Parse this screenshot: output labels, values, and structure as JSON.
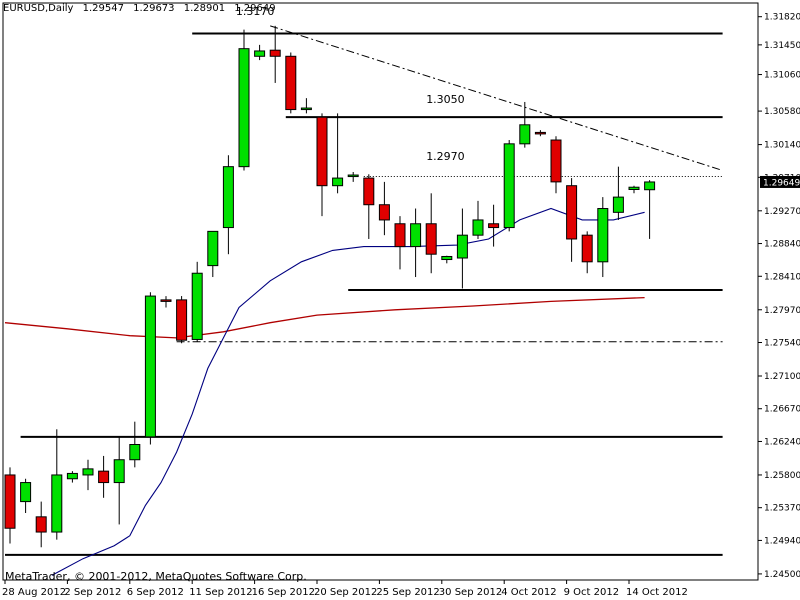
{
  "header": {
    "symbol": "EURUSD,Daily",
    "open": "1.29547",
    "high": "1.29673",
    "low": "1.28901",
    "close": "1.29649"
  },
  "footer": {
    "copyright": "MetaTrader, © 2001-2012, MetaQuotes Software Corp."
  },
  "colors": {
    "bull": "#00e000",
    "bear": "#e00000",
    "ma_fast": "#000080",
    "ma_slow": "#b00000",
    "current_price_bg": "#000000",
    "current_price_fg": "#ffffff"
  },
  "chart_data": {
    "type": "candlestick",
    "symbol": "EURUSD",
    "timeframe": "Daily",
    "ylim": [
      1.2442,
      1.32
    ],
    "price_ticks": [
      "1.31820",
      "1.31450",
      "1.31060",
      "1.30580",
      "1.30140",
      "1.29710",
      "1.29270",
      "1.28840",
      "1.28410",
      "1.27970",
      "1.27540",
      "1.27100",
      "1.26670",
      "1.26240",
      "1.25800",
      "1.25370",
      "1.24940",
      "1.24500"
    ],
    "current_price": "1.29649",
    "date_labels": [
      {
        "label": "28 Aug 2012",
        "index": 0
      },
      {
        "label": "2 Sep 2012",
        "index": 4
      },
      {
        "label": "6 Sep 2012",
        "index": 8
      },
      {
        "label": "11 Sep 2012",
        "index": 12
      },
      {
        "label": "16 Sep 2012",
        "index": 16
      },
      {
        "label": "20 Sep 2012",
        "index": 20
      },
      {
        "label": "25 Sep 2012",
        "index": 24
      },
      {
        "label": "30 Sep 2012",
        "index": 28
      },
      {
        "label": "4 Oct 2012",
        "index": 32
      },
      {
        "label": "9 Oct 2012",
        "index": 36
      },
      {
        "label": "14 Oct 2012",
        "index": 40
      }
    ],
    "candles": [
      {
        "o": 1.258,
        "h": 1.259,
        "l": 1.249,
        "c": 1.251
      },
      {
        "o": 1.2545,
        "h": 1.2575,
        "l": 1.253,
        "c": 1.257
      },
      {
        "o": 1.2525,
        "h": 1.2545,
        "l": 1.2485,
        "c": 1.2505
      },
      {
        "o": 1.2505,
        "h": 1.264,
        "l": 1.2495,
        "c": 1.258
      },
      {
        "o": 1.2575,
        "h": 1.2585,
        "l": 1.257,
        "c": 1.2582
      },
      {
        "o": 1.258,
        "h": 1.26,
        "l": 1.256,
        "c": 1.2588
      },
      {
        "o": 1.2585,
        "h": 1.2605,
        "l": 1.255,
        "c": 1.257
      },
      {
        "o": 1.257,
        "h": 1.263,
        "l": 1.2515,
        "c": 1.26
      },
      {
        "o": 1.26,
        "h": 1.265,
        "l": 1.259,
        "c": 1.262
      },
      {
        "o": 1.263,
        "h": 1.282,
        "l": 1.262,
        "c": 1.2815
      },
      {
        "o": 1.281,
        "h": 1.2815,
        "l": 1.28,
        "c": 1.2808
      },
      {
        "o": 1.281,
        "h": 1.2815,
        "l": 1.2753,
        "c": 1.2757
      },
      {
        "o": 1.2758,
        "h": 1.286,
        "l": 1.2755,
        "c": 1.2845
      },
      {
        "o": 1.2855,
        "h": 1.29,
        "l": 1.284,
        "c": 1.29
      },
      {
        "o": 1.2905,
        "h": 1.3,
        "l": 1.287,
        "c": 1.2985
      },
      {
        "o": 1.2985,
        "h": 1.3165,
        "l": 1.298,
        "c": 1.314
      },
      {
        "o": 1.313,
        "h": 1.3145,
        "l": 1.3125,
        "c": 1.3137
      },
      {
        "o": 1.3138,
        "h": 1.317,
        "l": 1.3095,
        "c": 1.313
      },
      {
        "o": 1.313,
        "h": 1.3135,
        "l": 1.3055,
        "c": 1.306
      },
      {
        "o": 1.306,
        "h": 1.3075,
        "l": 1.3055,
        "c": 1.3062
      },
      {
        "o": 1.305,
        "h": 1.3055,
        "l": 1.292,
        "c": 1.296
      },
      {
        "o": 1.296,
        "h": 1.3055,
        "l": 1.295,
        "c": 1.297
      },
      {
        "o": 1.2972,
        "h": 1.2978,
        "l": 1.2965,
        "c": 1.2974
      },
      {
        "o": 1.297,
        "h": 1.2975,
        "l": 1.289,
        "c": 1.2935
      },
      {
        "o": 1.2935,
        "h": 1.2965,
        "l": 1.2895,
        "c": 1.2915
      },
      {
        "o": 1.291,
        "h": 1.292,
        "l": 1.285,
        "c": 1.288
      },
      {
        "o": 1.288,
        "h": 1.293,
        "l": 1.284,
        "c": 1.291
      },
      {
        "o": 1.291,
        "h": 1.295,
        "l": 1.2845,
        "c": 1.287
      },
      {
        "o": 1.2863,
        "h": 1.2868,
        "l": 1.2858,
        "c": 1.2867
      },
      {
        "o": 1.2865,
        "h": 1.293,
        "l": 1.2825,
        "c": 1.2895
      },
      {
        "o": 1.2895,
        "h": 1.294,
        "l": 1.289,
        "c": 1.2915
      },
      {
        "o": 1.291,
        "h": 1.2935,
        "l": 1.288,
        "c": 1.2905
      },
      {
        "o": 1.2905,
        "h": 1.302,
        "l": 1.29,
        "c": 1.3015
      },
      {
        "o": 1.3015,
        "h": 1.307,
        "l": 1.301,
        "c": 1.304
      },
      {
        "o": 1.303,
        "h": 1.3033,
        "l": 1.3025,
        "c": 1.3028
      },
      {
        "o": 1.302,
        "h": 1.3025,
        "l": 1.295,
        "c": 1.2965
      },
      {
        "o": 1.296,
        "h": 1.297,
        "l": 1.286,
        "c": 1.289
      },
      {
        "o": 1.2895,
        "h": 1.29,
        "l": 1.2845,
        "c": 1.286
      },
      {
        "o": 1.286,
        "h": 1.2945,
        "l": 1.284,
        "c": 1.293
      },
      {
        "o": 1.2925,
        "h": 1.2985,
        "l": 1.2915,
        "c": 1.2945
      },
      {
        "o": 1.2955,
        "h": 1.296,
        "l": 1.295,
        "c": 1.2958
      },
      {
        "o": 1.29547,
        "h": 1.29673,
        "l": 1.28901,
        "c": 1.29649
      }
    ],
    "ma_fast": [
      {
        "i": 3,
        "v": 1.2448
      },
      {
        "i": 5,
        "v": 1.247
      },
      {
        "i": 7,
        "v": 1.2487
      },
      {
        "i": 8,
        "v": 1.25
      },
      {
        "i": 9,
        "v": 1.254
      },
      {
        "i": 10,
        "v": 1.257
      },
      {
        "i": 11,
        "v": 1.261
      },
      {
        "i": 12,
        "v": 1.266
      },
      {
        "i": 13,
        "v": 1.272
      },
      {
        "i": 14,
        "v": 1.276
      },
      {
        "i": 15,
        "v": 1.28
      },
      {
        "i": 17,
        "v": 1.2835
      },
      {
        "i": 19,
        "v": 1.286
      },
      {
        "i": 21,
        "v": 1.2875
      },
      {
        "i": 23,
        "v": 1.288
      },
      {
        "i": 26,
        "v": 1.288
      },
      {
        "i": 29,
        "v": 1.2882
      },
      {
        "i": 31,
        "v": 1.289
      },
      {
        "i": 33,
        "v": 1.2915
      },
      {
        "i": 35,
        "v": 1.293
      },
      {
        "i": 37,
        "v": 1.2915
      },
      {
        "i": 39,
        "v": 1.2915
      },
      {
        "i": 41,
        "v": 1.2925
      }
    ],
    "ma_slow": [
      {
        "i": 0,
        "v": 1.278
      },
      {
        "i": 4,
        "v": 1.2772
      },
      {
        "i": 8,
        "v": 1.2763
      },
      {
        "i": 11,
        "v": 1.276
      },
      {
        "i": 14,
        "v": 1.2768
      },
      {
        "i": 17,
        "v": 1.278
      },
      {
        "i": 20,
        "v": 1.279
      },
      {
        "i": 25,
        "v": 1.2797
      },
      {
        "i": 30,
        "v": 1.2802
      },
      {
        "i": 35,
        "v": 1.2808
      },
      {
        "i": 41,
        "v": 1.2813
      }
    ],
    "horizontal_lines": [
      {
        "price": 1.316,
        "from": 12,
        "to": 46,
        "style": "solid"
      },
      {
        "price": 1.305,
        "from": 18,
        "to": 46,
        "style": "solid"
      },
      {
        "price": 1.2823,
        "from": 22,
        "to": 46,
        "style": "solid"
      },
      {
        "price": 1.263,
        "from": 1,
        "to": 46,
        "style": "solid"
      },
      {
        "price": 1.2475,
        "from": 0,
        "to": 46,
        "style": "solid"
      },
      {
        "price": 1.2972,
        "from": 23,
        "to": 46,
        "style": "dotted"
      },
      {
        "price": 1.2755,
        "from": 11,
        "to": 46,
        "style": "dashdot"
      }
    ],
    "trendline": {
      "from": {
        "i": 17,
        "p": 1.317
      },
      "to": {
        "i": 46,
        "p": 1.298
      }
    },
    "annotations": [
      {
        "text": "1.3170",
        "i": 14.8,
        "p": 1.318
      },
      {
        "text": "1.3050",
        "i": 27,
        "p": 1.3065
      },
      {
        "text": "1.2970",
        "i": 27,
        "p": 1.299
      }
    ]
  }
}
